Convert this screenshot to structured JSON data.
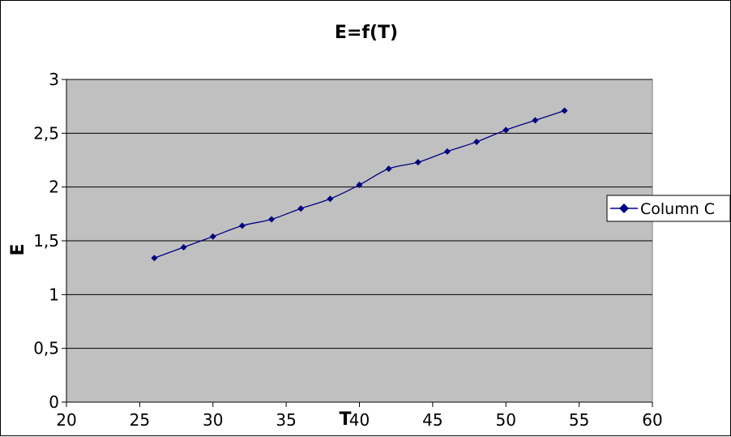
{
  "chart_data": {
    "type": "line",
    "title": "E=f(T)",
    "xlabel": "T",
    "ylabel": "E",
    "xlim": [
      20,
      60
    ],
    "ylim": [
      0,
      3
    ],
    "x_ticks": [
      "20",
      "25",
      "30",
      "35",
      "40",
      "45",
      "50",
      "55",
      "60"
    ],
    "y_ticks": [
      "0",
      "0,5",
      "1",
      "1,5",
      "2",
      "2,5",
      "3"
    ],
    "grid": "horizontal major gridlines",
    "legend": "right",
    "colors": {
      "plot_background": "#c0c0c0",
      "series": "#000080",
      "gridline": "#000000"
    },
    "series": [
      {
        "name": "Column C",
        "marker": "diamond",
        "x": [
          26,
          28,
          30,
          32,
          34,
          36,
          38,
          40,
          42,
          44,
          46,
          48,
          50,
          52,
          54
        ],
        "y": [
          1.34,
          1.44,
          1.54,
          1.64,
          1.7,
          1.8,
          1.89,
          2.02,
          2.17,
          2.23,
          2.33,
          2.42,
          2.53,
          2.62,
          2.71
        ]
      }
    ]
  }
}
